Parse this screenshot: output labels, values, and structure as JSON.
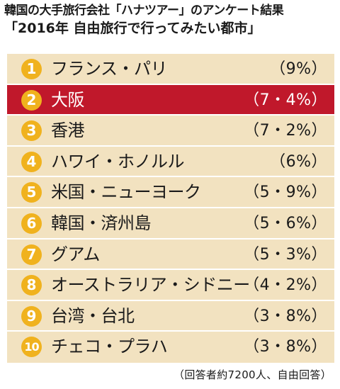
{
  "header": {
    "title": "韓国の大手旅行会社「ハナツアー」のアンケート結果",
    "subtitle": "「2016年 自由旅行で行ってみたい都市」"
  },
  "footnote": "（回答者約7200人、自由回答）",
  "colors": {
    "panel_background": "#f2e2c0",
    "highlight_row": "#c0182b",
    "rank_badge": "#f0b21e",
    "divider": "#ffffff"
  },
  "chart_data": {
    "type": "table",
    "title": "韓国の大手旅行会社「ハナツアー」のアンケート結果",
    "subtitle": "「2016年 自由旅行で行ってみたい都市」",
    "columns": [
      "rank",
      "city",
      "percent"
    ],
    "highlighted_rank": 2,
    "rows": [
      {
        "rank": "1",
        "city": "フランス・パリ",
        "percent": "（9%）",
        "value": 9.0
      },
      {
        "rank": "2",
        "city": "大阪",
        "percent": "（7・4%）",
        "value": 7.4
      },
      {
        "rank": "3",
        "city": "香港",
        "percent": "（7・2%）",
        "value": 7.2
      },
      {
        "rank": "4",
        "city": "ハワイ・ホノルル",
        "percent": "（6%）",
        "value": 6.0
      },
      {
        "rank": "5",
        "city": "米国・ニューヨーク",
        "percent": "（5・9%）",
        "value": 5.9
      },
      {
        "rank": "6",
        "city": "韓国・済州島",
        "percent": "（5・6%）",
        "value": 5.6
      },
      {
        "rank": "7",
        "city": "グアム",
        "percent": "（5・3%）",
        "value": 5.3
      },
      {
        "rank": "8",
        "city": "オーストラリア・シドニー",
        "percent": "（4・2%）",
        "value": 4.2
      },
      {
        "rank": "9",
        "city": "台湾・台北",
        "percent": "（3・8%）",
        "value": 3.8
      },
      {
        "rank": "10",
        "city": "チェコ・プラハ",
        "percent": "（3・8%）",
        "value": 3.8
      }
    ],
    "footnote": "（回答者約7200人、自由回答）"
  }
}
